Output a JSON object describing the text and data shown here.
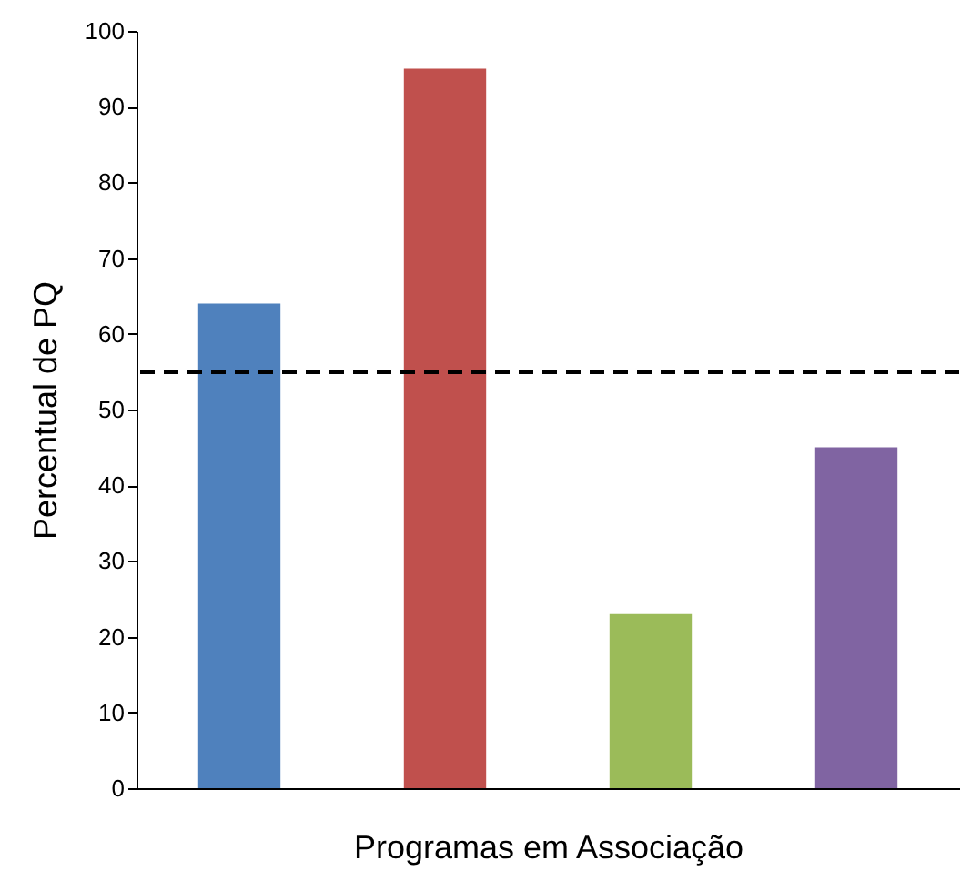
{
  "chart_data": {
    "type": "bar",
    "xlabel": "Programas em Associação",
    "ylabel": "Percentual de PQ",
    "categories": [
      null,
      null,
      null,
      null
    ],
    "values": [
      64,
      95,
      23,
      45
    ],
    "colors": [
      "#4f81bd",
      "#c0504d",
      "#9bbb59",
      "#8064a2"
    ],
    "ylim": [
      0,
      100
    ],
    "yticks": [
      0,
      10,
      20,
      30,
      40,
      50,
      60,
      70,
      80,
      90,
      100
    ],
    "grid": false,
    "ref_lines": [
      {
        "axis": "y",
        "value": 55,
        "line_style": "dashed",
        "color": "#000000"
      }
    ]
  }
}
